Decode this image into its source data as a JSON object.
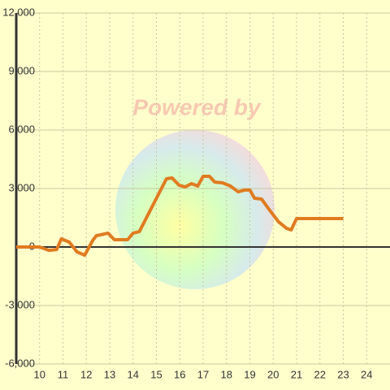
{
  "chart_data": {
    "type": "line",
    "watermark": "Powered by",
    "x": [
      9,
      10,
      10.4,
      10.73,
      10.93,
      11.27,
      11.6,
      11.93,
      12.27,
      12.43,
      12.93,
      13.2,
      13.77,
      14,
      14.27,
      15.43,
      15.67,
      15.97,
      16.23,
      16.5,
      16.77,
      17,
      17.27,
      17.5,
      17.83,
      18.17,
      18.5,
      18.77,
      19,
      19.2,
      19.5,
      19.83,
      20.23,
      20.57,
      20.77,
      21,
      23
    ],
    "series": [
      {
        "color": "#e07b20",
        "values": [
          0,
          0,
          -170,
          -130,
          420,
          250,
          -250,
          -420,
          330,
          580,
          710,
          375,
          375,
          710,
          790,
          3500,
          3540,
          3170,
          3080,
          3250,
          3125,
          3625,
          3625,
          3330,
          3290,
          3125,
          2830,
          2920,
          2920,
          2500,
          2460,
          1920,
          1290,
          960,
          875,
          1460,
          1460
        ]
      }
    ],
    "xlim": [
      9,
      25
    ],
    "xticks": [
      10,
      11,
      12,
      13,
      14,
      15,
      16,
      17,
      18,
      19,
      20,
      21,
      22,
      23,
      24
    ],
    "ylim": [
      -6000,
      12000
    ],
    "yticks": [
      {
        "value": -6000,
        "label": "-6,000"
      },
      {
        "value": -3000,
        "label": "-3,000"
      },
      0,
      {
        "value": 3000,
        "label": "3,000"
      },
      {
        "value": 6000,
        "label": "6,000"
      },
      {
        "value": 9000,
        "label": "9,000"
      },
      {
        "value": 12000,
        "label": "12,000"
      }
    ],
    "grid": true
  }
}
